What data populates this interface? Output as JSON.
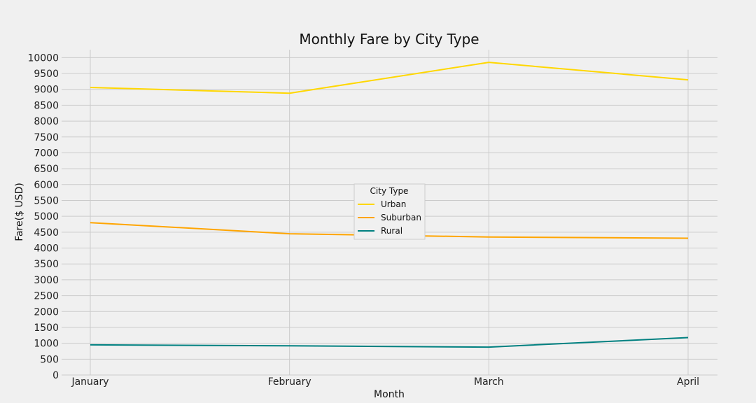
{
  "chart_data": {
    "type": "line",
    "title": "Monthly Fare by City Type",
    "xlabel": "Month",
    "ylabel": "Fare($ USD)",
    "categories": [
      "January",
      "February",
      "March",
      "April"
    ],
    "ylim": [
      0,
      10250
    ],
    "yticks": [
      0,
      500,
      1000,
      1500,
      2000,
      2500,
      3000,
      3500,
      4000,
      4500,
      5000,
      5500,
      6000,
      6500,
      7000,
      7500,
      8000,
      8500,
      9000,
      9500,
      10000
    ],
    "grid": true,
    "legend": {
      "title": "City Type",
      "placement": "center"
    },
    "series": [
      {
        "name": "Urban",
        "color": "#FFD700",
        "values": [
          9060,
          8880,
          9850,
          9300
        ]
      },
      {
        "name": "Suburban",
        "color": "#FFA500",
        "values": [
          4800,
          4450,
          4350,
          4310
        ]
      },
      {
        "name": "Rural",
        "color": "#008080",
        "values": [
          950,
          920,
          880,
          1180
        ]
      }
    ]
  }
}
